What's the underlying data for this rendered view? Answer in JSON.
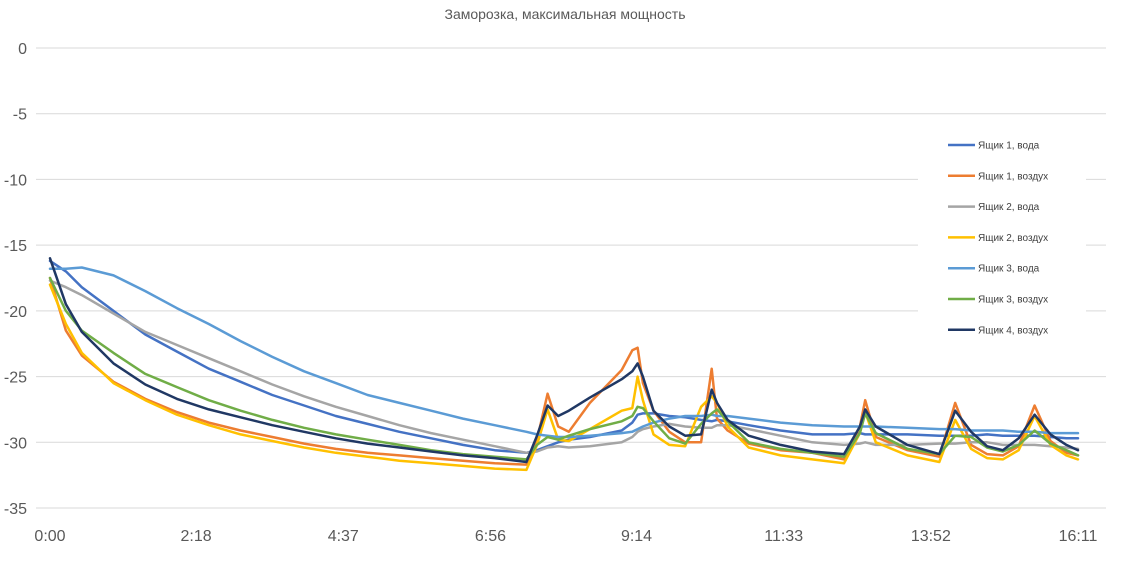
{
  "chart_data": {
    "type": "line",
    "title": "Заморозка, максимальная мощность",
    "xlabel": "",
    "ylabel": "",
    "ylim": [
      -35,
      0
    ],
    "yticks": [
      "0",
      "-5",
      "-10",
      "-15",
      "-20",
      "-25",
      "-30",
      "-35"
    ],
    "xtick_labels": [
      "0:00",
      "2:18",
      "4:37",
      "6:56",
      "9:14",
      "11:33",
      "13:52",
      "16:11"
    ],
    "grid": true,
    "legend_position": "right",
    "x": [
      "0:00",
      "0:15",
      "0:30",
      "1:00",
      "1:30",
      "2:00",
      "2:30",
      "3:00",
      "3:30",
      "4:00",
      "4:30",
      "5:00",
      "5:30",
      "6:00",
      "6:30",
      "7:00",
      "7:30",
      "7:40",
      "7:50",
      "8:00",
      "8:10",
      "8:30",
      "9:00",
      "9:10",
      "9:15",
      "9:20",
      "9:30",
      "9:45",
      "10:00",
      "10:15",
      "10:25",
      "10:30",
      "10:40",
      "11:00",
      "11:30",
      "12:00",
      "12:30",
      "12:45",
      "12:50",
      "13:00",
      "13:30",
      "14:00",
      "14:15",
      "14:30",
      "14:45",
      "15:00",
      "15:15",
      "15:30",
      "15:45",
      "16:00",
      "16:11"
    ],
    "series": [
      {
        "name": "Ящик 1, вода",
        "color": "#4472C4",
        "values": [
          -16.2,
          -17.0,
          -18.2,
          -20.0,
          -21.8,
          -23.1,
          -24.4,
          -25.4,
          -26.4,
          -27.2,
          -28.0,
          -28.6,
          -29.2,
          -29.7,
          -30.2,
          -30.6,
          -30.8,
          -30.6,
          -30.3,
          -30.0,
          -29.8,
          -29.6,
          -29.1,
          -28.5,
          -27.9,
          -27.8,
          -27.8,
          -28.0,
          -28.1,
          -28.3,
          -28.4,
          -28.3,
          -28.4,
          -28.7,
          -29.1,
          -29.4,
          -29.4,
          -29.3,
          -29.4,
          -29.4,
          -29.4,
          -29.5,
          -29.5,
          -29.5,
          -29.4,
          -29.5,
          -29.5,
          -29.5,
          -29.6,
          -29.7,
          -29.7
        ]
      },
      {
        "name": "Ящик 1, воздух",
        "color": "#ED7D31",
        "values": [
          -17.5,
          -21.5,
          -23.4,
          -25.4,
          -26.7,
          -27.7,
          -28.5,
          -29.1,
          -29.6,
          -30.1,
          -30.5,
          -30.8,
          -31.0,
          -31.2,
          -31.4,
          -31.6,
          -31.7,
          -29.8,
          -26.3,
          -28.8,
          -29.2,
          -27.0,
          -24.5,
          -23.0,
          -22.8,
          -25.5,
          -27.6,
          -29.2,
          -30.0,
          -30.0,
          -24.4,
          -28.2,
          -29.1,
          -30.1,
          -30.6,
          -30.8,
          -31.3,
          -28.8,
          -26.8,
          -29.6,
          -30.6,
          -31.1,
          -27.0,
          -30.2,
          -30.9,
          -31.0,
          -30.3,
          -27.2,
          -29.9,
          -30.8,
          -31.0
        ]
      },
      {
        "name": "Ящик 2, вода",
        "color": "#A5A5A5",
        "values": [
          -17.7,
          -18.2,
          -18.8,
          -20.2,
          -21.6,
          -22.6,
          -23.6,
          -24.6,
          -25.6,
          -26.5,
          -27.3,
          -28.0,
          -28.7,
          -29.3,
          -29.8,
          -30.3,
          -30.8,
          -30.7,
          -30.4,
          -30.3,
          -30.4,
          -30.3,
          -30.0,
          -29.6,
          -29.2,
          -29.0,
          -28.8,
          -28.6,
          -28.8,
          -28.9,
          -28.9,
          -28.7,
          -28.7,
          -29.0,
          -29.5,
          -30.0,
          -30.2,
          -30.1,
          -30.0,
          -30.2,
          -30.2,
          -30.1,
          -30.1,
          -30.0,
          -30.0,
          -30.2,
          -30.2,
          -30.2,
          -30.3,
          -30.4,
          -30.5
        ]
      },
      {
        "name": "Ящик 2, воздух",
        "color": "#FFC000",
        "values": [
          -18.0,
          -21.0,
          -23.2,
          -25.5,
          -26.8,
          -27.9,
          -28.7,
          -29.4,
          -29.9,
          -30.4,
          -30.8,
          -31.1,
          -31.4,
          -31.6,
          -31.8,
          -32.0,
          -32.1,
          -30.2,
          -27.5,
          -29.8,
          -29.9,
          -29.0,
          -27.6,
          -27.4,
          -25.0,
          -26.8,
          -29.4,
          -30.2,
          -30.3,
          -27.3,
          -26.5,
          -27.0,
          -28.8,
          -30.4,
          -31.0,
          -31.3,
          -31.6,
          -29.3,
          -27.7,
          -30.0,
          -31.0,
          -31.5,
          -28.3,
          -30.5,
          -31.2,
          -31.3,
          -30.6,
          -28.0,
          -30.2,
          -31.0,
          -31.3
        ]
      },
      {
        "name": "Ящик 3, вода",
        "color": "#5B9BD5",
        "values": [
          -16.8,
          -16.8,
          -16.7,
          -17.3,
          -18.5,
          -19.8,
          -21.0,
          -22.3,
          -23.5,
          -24.6,
          -25.5,
          -26.4,
          -27.0,
          -27.6,
          -28.2,
          -28.7,
          -29.2,
          -29.4,
          -29.5,
          -29.6,
          -29.6,
          -29.5,
          -29.3,
          -29.2,
          -29.0,
          -28.8,
          -28.5,
          -28.2,
          -28.0,
          -28.0,
          -27.9,
          -28.0,
          -28.0,
          -28.2,
          -28.5,
          -28.7,
          -28.8,
          -28.8,
          -28.8,
          -28.8,
          -28.9,
          -29.0,
          -29.0,
          -29.1,
          -29.1,
          -29.1,
          -29.2,
          -29.2,
          -29.3,
          -29.3,
          -29.3
        ]
      },
      {
        "name": "Ящик 3, воздух",
        "color": "#70AD47",
        "values": [
          -17.5,
          -20.0,
          -21.5,
          -23.2,
          -24.8,
          -25.8,
          -26.8,
          -27.6,
          -28.3,
          -28.9,
          -29.4,
          -29.8,
          -30.2,
          -30.6,
          -30.9,
          -31.1,
          -31.3,
          -30.2,
          -29.6,
          -29.8,
          -29.5,
          -29.0,
          -28.4,
          -28.0,
          -27.3,
          -27.4,
          -28.4,
          -29.7,
          -30.1,
          -28.6,
          -27.8,
          -27.5,
          -28.4,
          -30.0,
          -30.5,
          -30.8,
          -31.1,
          -29.3,
          -27.8,
          -29.3,
          -30.5,
          -30.9,
          -29.5,
          -29.6,
          -30.4,
          -30.7,
          -30.2,
          -29.1,
          -30.1,
          -30.6,
          -31.0
        ]
      },
      {
        "name": "Ящик 4, воздух",
        "color": "#203864",
        "values": [
          -16.0,
          -19.5,
          -21.6,
          -24.0,
          -25.6,
          -26.7,
          -27.5,
          -28.1,
          -28.7,
          -29.2,
          -29.7,
          -30.1,
          -30.4,
          -30.7,
          -31.0,
          -31.2,
          -31.5,
          -29.5,
          -27.2,
          -28.0,
          -27.6,
          -26.6,
          -25.2,
          -24.6,
          -24.0,
          -25.0,
          -27.6,
          -28.8,
          -29.5,
          -29.4,
          -26.0,
          -27.0,
          -28.3,
          -29.5,
          -30.2,
          -30.7,
          -30.9,
          -28.8,
          -27.5,
          -28.8,
          -30.2,
          -30.9,
          -27.6,
          -29.2,
          -30.3,
          -30.6,
          -29.7,
          -27.9,
          -29.4,
          -30.2,
          -30.6
        ]
      }
    ]
  }
}
